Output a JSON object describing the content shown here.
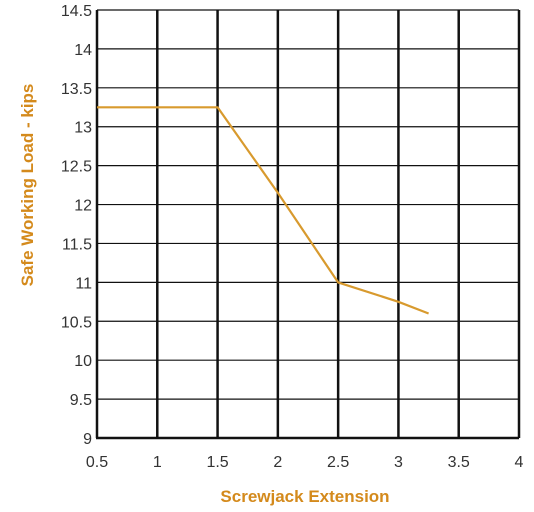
{
  "chart_data": {
    "type": "line",
    "title": "",
    "xlabel": "Screwjack Extension",
    "ylabel": "Safe Working Load - kips",
    "xlim": [
      0.5,
      4
    ],
    "ylim": [
      9,
      14.5
    ],
    "x_ticks": [
      "0.5",
      "1",
      "1.5",
      "2",
      "2.5",
      "3",
      "3.5",
      "4"
    ],
    "y_ticks": [
      "9",
      "9.5",
      "10",
      "10.5",
      "11",
      "11.5",
      "12",
      "12.5",
      "13",
      "13.5",
      "14",
      "14.5"
    ],
    "grid": true,
    "series": [
      {
        "x": [
          0.5,
          1.0,
          1.5,
          2.0,
          2.5,
          3.0,
          3.25
        ],
        "y": [
          13.25,
          13.25,
          13.25,
          12.15,
          11.0,
          10.75,
          10.6
        ]
      }
    ],
    "colors": {
      "line": "#d89a2e",
      "label": "#d48a1c",
      "grid": "#111111",
      "tick_text": "#333333"
    }
  }
}
